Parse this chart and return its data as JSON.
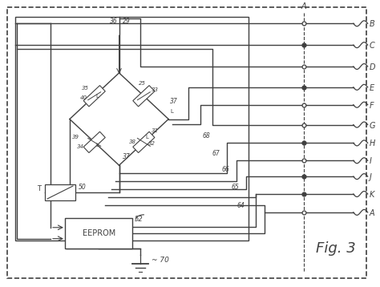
{
  "bg_color": "#ffffff",
  "line_color": "#404040",
  "conn_names": [
    "B",
    "C",
    "D",
    "E",
    "F",
    "G",
    "H",
    "I",
    "J",
    "K",
    "A"
  ],
  "wire_nums": [
    "68",
    "67",
    "66",
    "65",
    "64"
  ],
  "num_labels": [
    "36",
    "29",
    "35",
    "25",
    "33",
    "40",
    "37",
    "39",
    "38",
    "31",
    "34",
    "32",
    "37",
    "50",
    "52",
    "70"
  ],
  "fig_label": "Fig. 3"
}
